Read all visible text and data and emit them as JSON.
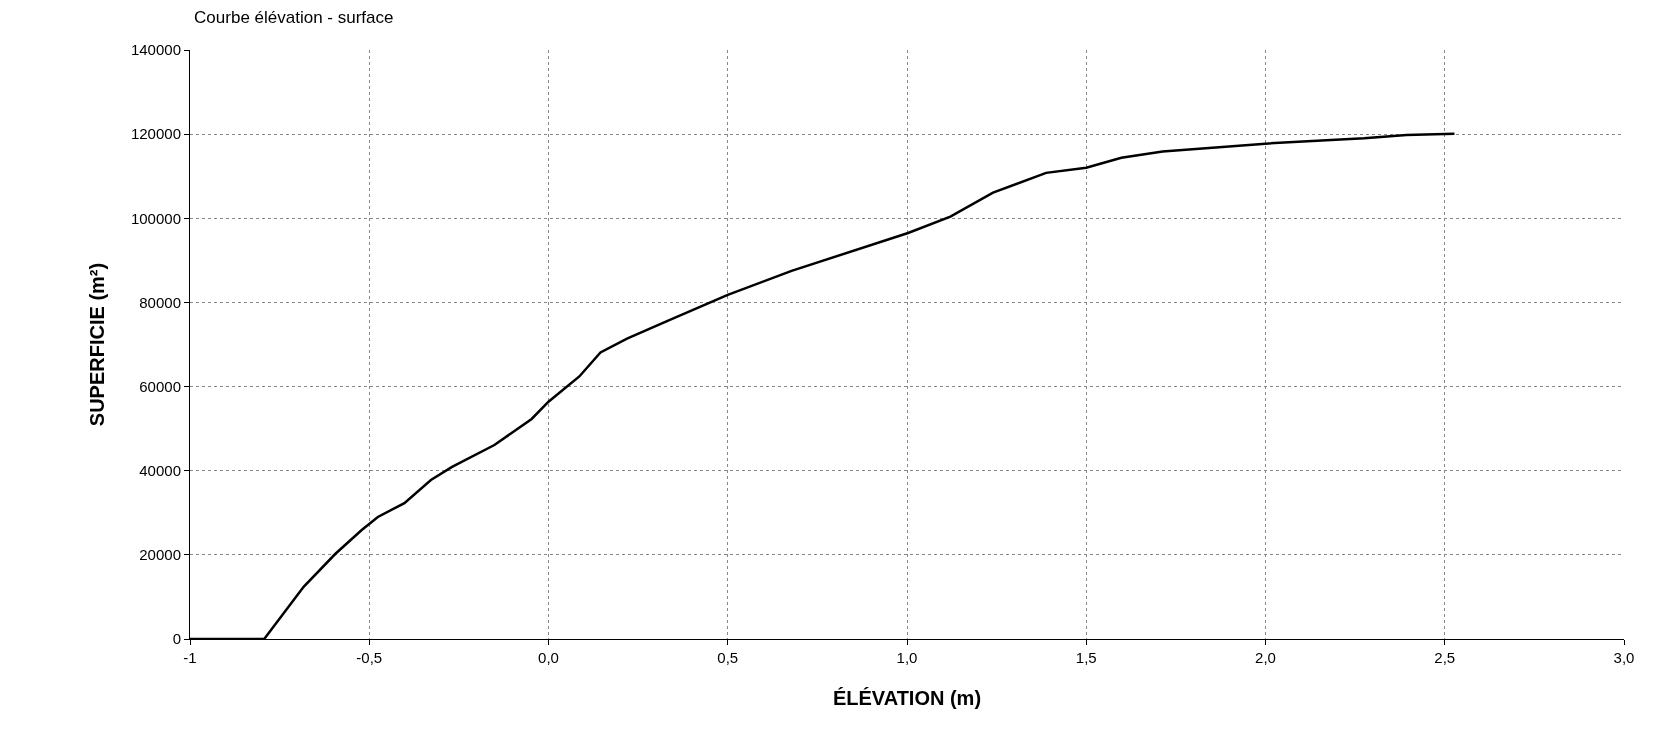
{
  "chart_data": {
    "type": "line",
    "title": "Courbe élévation - surface",
    "xlabel": "ÉLÉVATION (m)",
    "ylabel": "SUPERFICIE (m²)",
    "x": [
      -1,
      -0.793,
      -0.683,
      -0.595,
      -0.521,
      -0.476,
      -0.402,
      -0.328,
      -0.269,
      -0.151,
      -0.047,
      0.0,
      0.086,
      0.145,
      0.219,
      0.337,
      0.5,
      0.678,
      1.003,
      1.121,
      1.24,
      1.388,
      1.5,
      1.598,
      1.713,
      2.009,
      2.275,
      2.393,
      2.527
    ],
    "series": [
      {
        "color": "#000000",
        "values": [
          0,
          0,
          12400,
          20200,
          25900,
          29000,
          32300,
          37800,
          40900,
          46100,
          52300,
          56400,
          62400,
          68100,
          71400,
          75800,
          81800,
          87500,
          96500,
          100400,
          106100,
          110800,
          112000,
          114400,
          115900,
          117800,
          119000,
          119800,
          120100
        ]
      }
    ],
    "xlim": [
      -1,
      3
    ],
    "ylim": [
      0,
      140000
    ],
    "xticks": [
      -1,
      {
        "value": -0.5,
        "label": "-0,5"
      },
      {
        "value": 0,
        "label": "0,0"
      },
      {
        "value": 0.5,
        "label": "0,5"
      },
      {
        "value": 1,
        "label": "1,0"
      },
      {
        "value": 1.5,
        "label": "1,5"
      },
      {
        "value": 2,
        "label": "2,0"
      },
      {
        "value": 2.5,
        "label": "2,5"
      },
      {
        "value": 3,
        "label": "3,0"
      }
    ],
    "yticks": [
      0,
      20000,
      40000,
      60000,
      80000,
      100000,
      120000,
      140000
    ],
    "grid": true,
    "marker": "none",
    "line_style": "solid"
  }
}
